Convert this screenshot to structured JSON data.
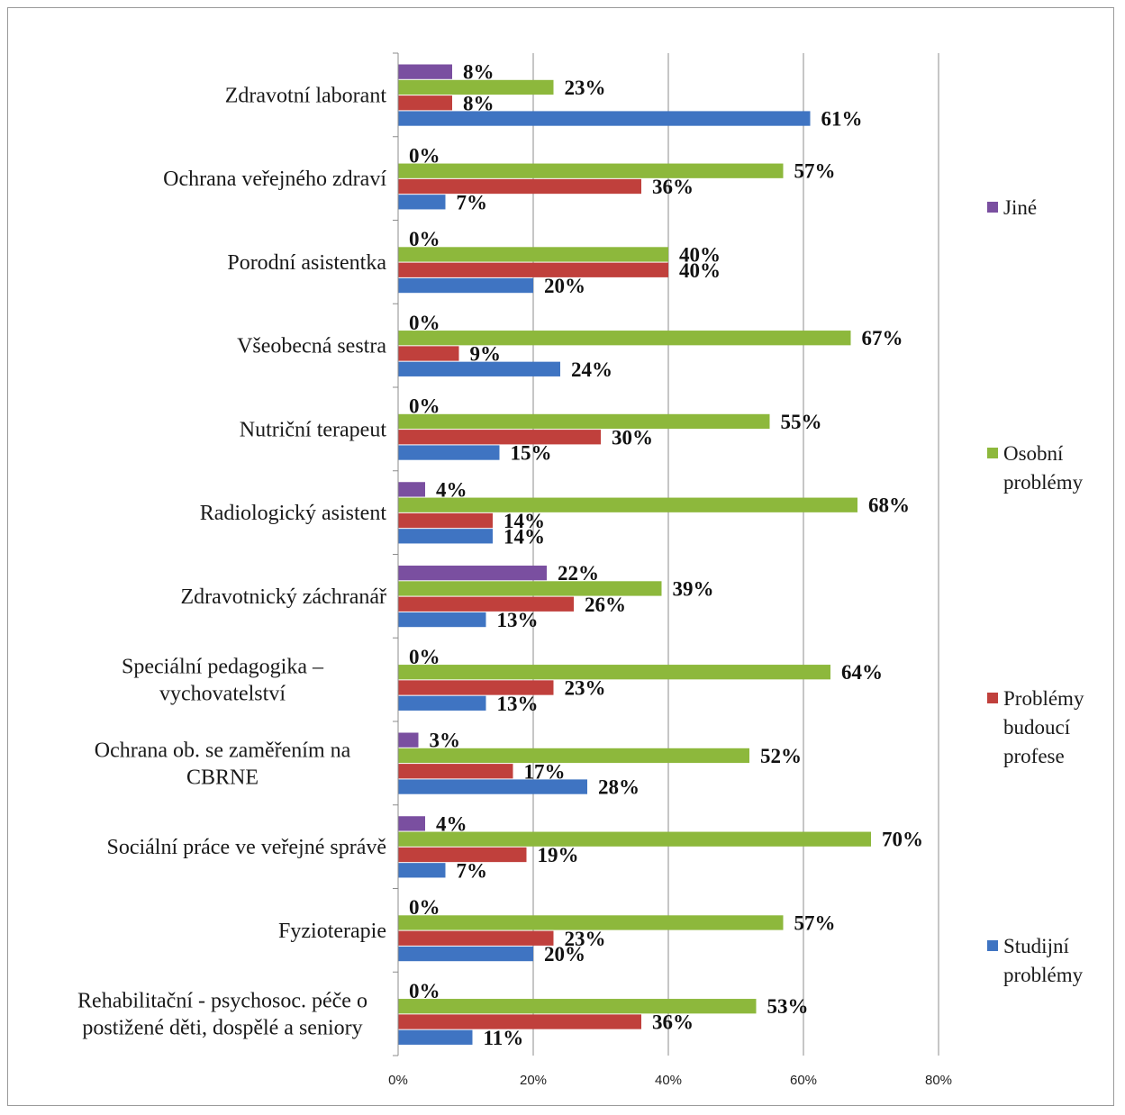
{
  "chart_data": {
    "type": "bar",
    "orientation": "horizontal",
    "title": "",
    "xlabel": "",
    "ylabel": "",
    "xlim": [
      0,
      80
    ],
    "x_ticks": [
      "0%",
      "20%",
      "40%",
      "60%",
      "80%"
    ],
    "grid": "vertical",
    "legend_position": "right",
    "value_suffix": "%",
    "categories": [
      {
        "lines": [
          "Zdravotní laborant"
        ]
      },
      {
        "lines": [
          "Ochrana veřejného zdraví"
        ]
      },
      {
        "lines": [
          "Porodní asistentka"
        ]
      },
      {
        "lines": [
          "Všeobecná sestra"
        ]
      },
      {
        "lines": [
          "Nutriční terapeut"
        ]
      },
      {
        "lines": [
          "Radiologický asistent"
        ]
      },
      {
        "lines": [
          "Zdravotnický záchranář"
        ]
      },
      {
        "lines": [
          "Speciální pedagogika –",
          "vychovatelství"
        ]
      },
      {
        "lines": [
          "Ochrana ob. se zaměřením na",
          "CBRNE"
        ]
      },
      {
        "lines": [
          "Sociální práce ve veřejné správě"
        ]
      },
      {
        "lines": [
          "Fyzioterapie"
        ]
      },
      {
        "lines": [
          "Rehabilitační - psychosoc. péče o",
          "postižené děti, dospělé a seniory"
        ]
      }
    ],
    "series": [
      {
        "name": "Jiné",
        "color": "#7a4fa0",
        "values": [
          8,
          0,
          0,
          0,
          0,
          4,
          22,
          0,
          3,
          4,
          0,
          0
        ]
      },
      {
        "name": "Osobní problémy",
        "color": "#8db83c",
        "values": [
          23,
          57,
          40,
          67,
          55,
          68,
          39,
          64,
          52,
          70,
          57,
          53
        ]
      },
      {
        "name": "Problémy budoucí profese",
        "color": "#c0403c",
        "values": [
          8,
          36,
          40,
          9,
          30,
          14,
          26,
          23,
          17,
          19,
          23,
          36
        ]
      },
      {
        "name": "Studijní problémy",
        "color": "#3f74c2",
        "values": [
          61,
          7,
          20,
          24,
          15,
          14,
          13,
          13,
          28,
          7,
          20,
          11
        ]
      }
    ],
    "legend": [
      {
        "series": "Jiné",
        "lines": [
          "Jiné"
        ]
      },
      {
        "series": "Osobní problémy",
        "lines": [
          "Osobní",
          "problémy"
        ]
      },
      {
        "series": "Problémy budoucí profese",
        "lines": [
          "Problémy",
          "budoucí",
          "profese"
        ]
      },
      {
        "series": "Studijní problémy",
        "lines": [
          "Studijní",
          "problémy"
        ]
      }
    ]
  }
}
